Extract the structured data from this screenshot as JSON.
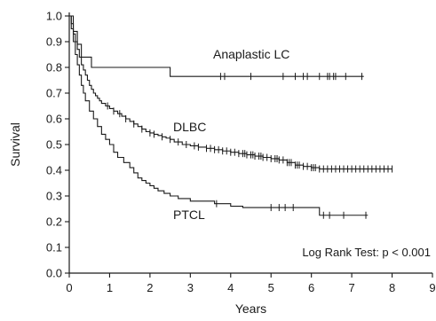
{
  "chart_data": {
    "type": "line",
    "step": true,
    "xlabel": "Years",
    "ylabel": "Survival",
    "xlim": [
      0,
      9
    ],
    "ylim": [
      0,
      1.0
    ],
    "xticks": [
      "0",
      "1",
      "2",
      "3",
      "4",
      "5",
      "6",
      "7",
      "8",
      "9"
    ],
    "yticks": [
      "0.0",
      "0.1",
      "0.2",
      "0.3",
      "0.4",
      "0.5",
      "0.6",
      "0.7",
      "0.8",
      "0.9",
      "1.0"
    ],
    "grid": false,
    "annotation": "Log Rank Test: p < 0.001",
    "series": [
      {
        "name": "Anaplastic LC",
        "x": [
          0,
          0.1,
          0.2,
          0.3,
          0.55,
          2.5,
          7.3
        ],
        "y": [
          1.0,
          0.94,
          0.89,
          0.84,
          0.8,
          0.765,
          0.765
        ],
        "censors": [
          3.75,
          3.85,
          4.5,
          5.3,
          5.6,
          5.8,
          5.9,
          6.2,
          6.4,
          6.45,
          6.55,
          6.6,
          6.85,
          7.25
        ]
      },
      {
        "name": "DLBC",
        "x": [
          0,
          0.05,
          0.1,
          0.15,
          0.2,
          0.25,
          0.3,
          0.35,
          0.4,
          0.45,
          0.5,
          0.55,
          0.6,
          0.65,
          0.7,
          0.75,
          0.8,
          0.9,
          1.0,
          1.1,
          1.2,
          1.3,
          1.4,
          1.5,
          1.6,
          1.7,
          1.8,
          1.9,
          2.0,
          2.1,
          2.2,
          2.3,
          2.4,
          2.5,
          2.6,
          2.8,
          3.0,
          3.2,
          3.4,
          3.6,
          3.8,
          4.0,
          4.2,
          4.4,
          4.6,
          4.8,
          5.0,
          5.2,
          5.4,
          5.6,
          5.8,
          6.0,
          6.2,
          8.0
        ],
        "y": [
          1.0,
          0.97,
          0.93,
          0.9,
          0.87,
          0.84,
          0.81,
          0.79,
          0.77,
          0.75,
          0.73,
          0.715,
          0.7,
          0.69,
          0.68,
          0.67,
          0.66,
          0.65,
          0.64,
          0.63,
          0.62,
          0.61,
          0.6,
          0.59,
          0.58,
          0.57,
          0.56,
          0.55,
          0.545,
          0.54,
          0.535,
          0.53,
          0.525,
          0.52,
          0.51,
          0.5,
          0.495,
          0.49,
          0.485,
          0.48,
          0.475,
          0.47,
          0.465,
          0.46,
          0.455,
          0.45,
          0.445,
          0.44,
          0.43,
          0.42,
          0.415,
          0.41,
          0.405,
          0.405
        ],
        "censors": [
          0.95,
          1.1,
          1.25,
          1.4,
          1.6,
          1.8,
          2.0,
          2.1,
          2.3,
          2.5,
          2.7,
          2.9,
          3.1,
          3.2,
          3.4,
          3.5,
          3.6,
          3.7,
          3.8,
          3.9,
          4.0,
          4.1,
          4.2,
          4.3,
          4.35,
          4.4,
          4.5,
          4.55,
          4.6,
          4.7,
          4.75,
          4.8,
          4.9,
          5.0,
          5.1,
          5.15,
          5.2,
          5.3,
          5.4,
          5.45,
          5.5,
          5.6,
          5.65,
          5.7,
          5.8,
          5.9,
          6.0,
          6.05,
          6.1,
          6.2,
          6.3,
          6.4,
          6.5,
          6.6,
          6.7,
          6.8,
          6.9,
          7.0,
          7.1,
          7.2,
          7.3,
          7.4,
          7.5,
          7.6,
          7.7,
          7.8,
          7.9,
          8.0
        ]
      },
      {
        "name": "PTCL",
        "x": [
          0,
          0.05,
          0.1,
          0.15,
          0.2,
          0.25,
          0.3,
          0.35,
          0.4,
          0.5,
          0.6,
          0.7,
          0.8,
          0.9,
          1.0,
          1.1,
          1.2,
          1.35,
          1.5,
          1.6,
          1.7,
          1.8,
          1.9,
          2.0,
          2.1,
          2.2,
          2.35,
          2.5,
          2.7,
          3.0,
          3.6,
          4.0,
          4.3,
          6.2,
          7.4
        ],
        "y": [
          1.0,
          0.95,
          0.9,
          0.85,
          0.81,
          0.77,
          0.73,
          0.7,
          0.67,
          0.63,
          0.6,
          0.57,
          0.54,
          0.52,
          0.5,
          0.47,
          0.45,
          0.43,
          0.41,
          0.39,
          0.37,
          0.36,
          0.35,
          0.34,
          0.33,
          0.32,
          0.31,
          0.3,
          0.29,
          0.28,
          0.27,
          0.26,
          0.255,
          0.225,
          0.225
        ],
        "censors": [
          3.65,
          5.0,
          5.2,
          5.35,
          5.55,
          6.3,
          6.45,
          6.8,
          7.35
        ]
      }
    ]
  }
}
